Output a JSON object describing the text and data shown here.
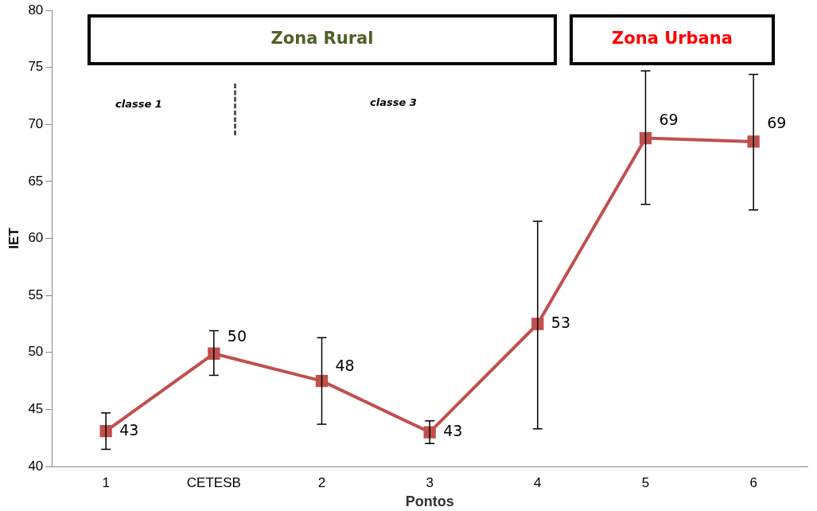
{
  "chart_data": {
    "type": "line",
    "xlabel": "Pontos",
    "ylabel": "IET",
    "categories": [
      "1",
      "CETESB",
      "2",
      "3",
      "4",
      "5",
      "6"
    ],
    "series": [
      {
        "color": "#c0504d",
        "values": [
          43.1,
          49.9,
          47.5,
          43.0,
          52.5,
          68.8,
          68.5
        ],
        "errors": [
          [
            41.5,
            44.7
          ],
          [
            48.0,
            51.9
          ],
          [
            43.7,
            51.3
          ],
          [
            42.0,
            44.0
          ],
          [
            43.3,
            61.5
          ],
          [
            63.0,
            74.7
          ],
          [
            62.5,
            74.4
          ]
        ],
        "value_labels": [
          "43",
          "50",
          "48",
          "43",
          "53",
          "69",
          "69"
        ]
      }
    ],
    "ylim": [
      40,
      80
    ],
    "yticks": [
      40,
      45,
      50,
      55,
      60,
      65,
      70,
      75,
      80
    ],
    "annotations": [
      "Zona Rural",
      "Zona Urbana",
      "classe 1",
      "classe 3"
    ],
    "grid": false,
    "legend": false,
    "marker": "square",
    "line_style": "solid"
  }
}
